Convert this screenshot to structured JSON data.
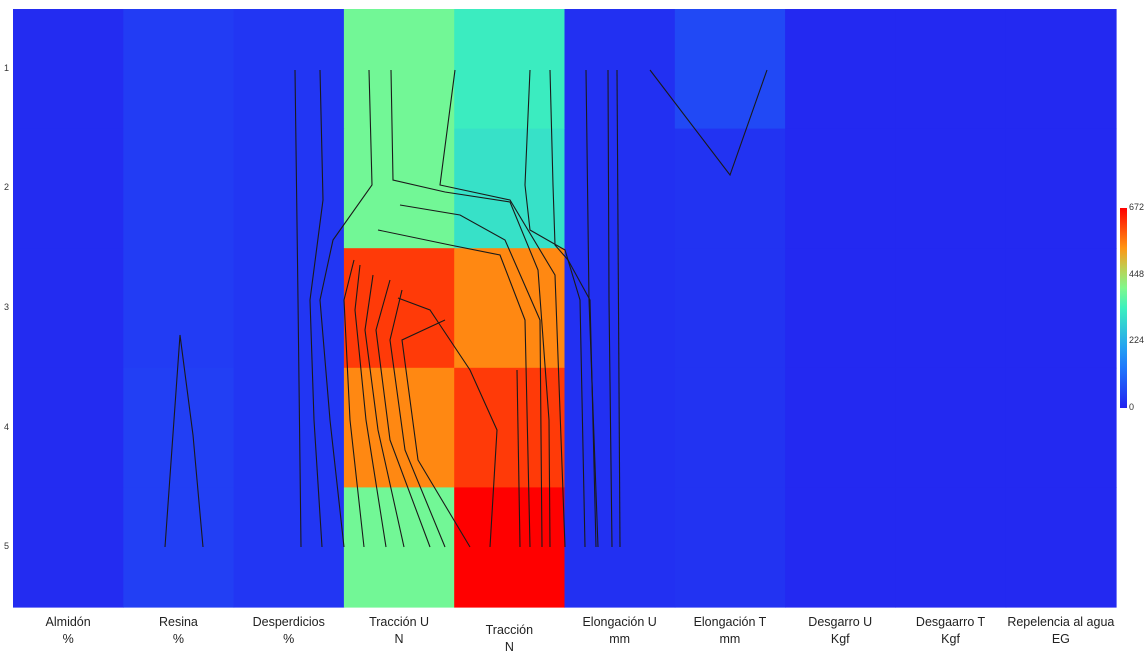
{
  "chart_data": {
    "type": "heatmap",
    "rows": [
      "1",
      "2",
      "3",
      "4",
      "5"
    ],
    "columns": [
      {
        "name": "Almidón",
        "unit": "%"
      },
      {
        "name": "Resina",
        "unit": "%"
      },
      {
        "name": "Desperdicios",
        "unit": "%"
      },
      {
        "name": "Tracción U",
        "unit": "N"
      },
      {
        "name": "Tracción",
        "unit": "N"
      },
      {
        "name": "Elongación U",
        "unit": "mm"
      },
      {
        "name": "Elongación T",
        "unit": "mm"
      },
      {
        "name": "Desgarro U",
        "unit": "Kgf"
      },
      {
        "name": "Desgaarro T",
        "unit": "Kgf"
      },
      {
        "name": "Repelencia al agua",
        "unit": "EG"
      }
    ],
    "values": [
      [
        15,
        40,
        30,
        390,
        330,
        20,
        60,
        10,
        10,
        10
      ],
      [
        15,
        40,
        30,
        390,
        310,
        20,
        25,
        10,
        10,
        10
      ],
      [
        15,
        40,
        30,
        620,
        550,
        20,
        25,
        10,
        10,
        10
      ],
      [
        15,
        45,
        30,
        550,
        620,
        20,
        25,
        10,
        10,
        10
      ],
      [
        15,
        45,
        30,
        390,
        672,
        20,
        25,
        10,
        10,
        10
      ]
    ],
    "colorbar": {
      "min": 0,
      "max": 672,
      "ticks": [
        "0",
        "224",
        "448",
        "672"
      ]
    },
    "contours": [
      [
        [
          165,
          547
        ],
        [
          180,
          335
        ],
        [
          193,
          435
        ],
        [
          203,
          547
        ]
      ],
      [
        [
          650,
          70
        ],
        [
          730,
          175
        ],
        [
          767,
          70
        ]
      ],
      [
        [
          295,
          70
        ],
        [
          298,
          300
        ],
        [
          301,
          547
        ]
      ],
      [
        [
          320,
          70
        ],
        [
          323,
          200
        ],
        [
          310,
          300
        ],
        [
          314,
          420
        ],
        [
          322,
          547
        ]
      ],
      [
        [
          369,
          70
        ],
        [
          372,
          185
        ],
        [
          333,
          240
        ],
        [
          320,
          300
        ],
        [
          330,
          420
        ],
        [
          344,
          547
        ]
      ],
      [
        [
          391,
          70
        ],
        [
          393,
          180
        ],
        [
          445,
          192
        ],
        [
          510,
          202
        ],
        [
          538,
          270
        ],
        [
          549,
          420
        ],
        [
          550,
          547
        ]
      ],
      [
        [
          455,
          70
        ],
        [
          440,
          185
        ],
        [
          510,
          200
        ],
        [
          555,
          275
        ],
        [
          565,
          547
        ]
      ],
      [
        [
          530,
          70
        ],
        [
          525,
          185
        ],
        [
          530,
          230
        ],
        [
          565,
          250
        ],
        [
          580,
          300
        ],
        [
          585,
          547
        ]
      ],
      [
        [
          550,
          70
        ],
        [
          553,
          185
        ],
        [
          555,
          245
        ],
        [
          568,
          260
        ],
        [
          590,
          300
        ],
        [
          596,
          547
        ]
      ],
      [
        [
          586,
          70
        ],
        [
          589,
          300
        ],
        [
          598,
          547
        ]
      ],
      [
        [
          608,
          70
        ],
        [
          609,
          300
        ],
        [
          612,
          547
        ]
      ],
      [
        [
          617,
          70
        ],
        [
          620,
          547
        ]
      ],
      [
        [
          400,
          205
        ],
        [
          460,
          215
        ],
        [
          505,
          240
        ],
        [
          540,
          320
        ],
        [
          542,
          547
        ]
      ],
      [
        [
          378,
          230
        ],
        [
          450,
          245
        ],
        [
          500,
          255
        ],
        [
          525,
          320
        ],
        [
          530,
          547
        ]
      ],
      [
        [
          354,
          260
        ],
        [
          344,
          300
        ],
        [
          350,
          420
        ],
        [
          364,
          547
        ]
      ],
      [
        [
          360,
          265
        ],
        [
          355,
          310
        ],
        [
          366,
          420
        ],
        [
          386,
          547
        ]
      ],
      [
        [
          373,
          275
        ],
        [
          365,
          330
        ],
        [
          378,
          430
        ],
        [
          404,
          547
        ]
      ],
      [
        [
          390,
          280
        ],
        [
          376,
          330
        ],
        [
          390,
          440
        ],
        [
          430,
          547
        ]
      ],
      [
        [
          402,
          290
        ],
        [
          390,
          340
        ],
        [
          405,
          450
        ],
        [
          445,
          547
        ]
      ],
      [
        [
          398,
          298
        ],
        [
          430,
          310
        ],
        [
          440,
          325
        ],
        [
          470,
          370
        ],
        [
          497,
          430
        ],
        [
          490,
          547
        ]
      ],
      [
        [
          445,
          320
        ],
        [
          402,
          340
        ],
        [
          418,
          460
        ],
        [
          470,
          547
        ]
      ],
      [
        [
          517,
          370
        ],
        [
          520,
          547
        ]
      ]
    ]
  }
}
